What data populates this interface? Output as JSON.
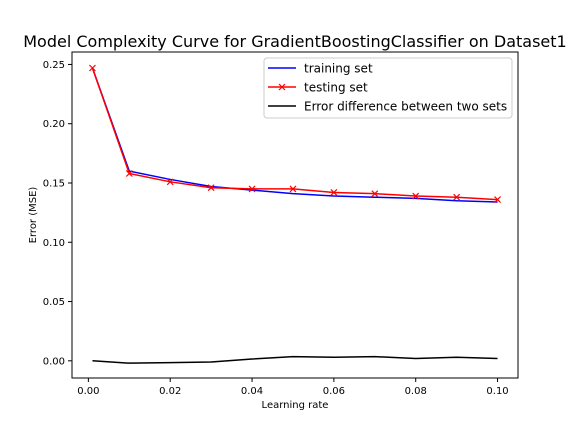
{
  "chart_data": {
    "type": "line",
    "title": "Model Complexity Curve for GradientBoostingClassifier on Dataset1",
    "xlabel": "Learning rate",
    "ylabel": "Error (MSE)",
    "xlim": [
      -0.004,
      0.105
    ],
    "ylim": [
      -0.0145,
      0.2605
    ],
    "x_ticks": [
      0.0,
      0.02,
      0.04,
      0.06,
      0.08,
      0.1
    ],
    "x_tick_labels": [
      "0.00",
      "0.02",
      "0.04",
      "0.06",
      "0.08",
      "0.10"
    ],
    "y_ticks": [
      0.0,
      0.05,
      0.1,
      0.15,
      0.2,
      0.25
    ],
    "y_tick_labels": [
      "0.00",
      "0.05",
      "0.10",
      "0.15",
      "0.20",
      "0.25"
    ],
    "x": [
      0.001,
      0.01,
      0.02,
      0.03,
      0.04,
      0.05,
      0.06,
      0.07,
      0.08,
      0.09,
      0.1
    ],
    "series": [
      {
        "name": "training set",
        "color": "#0000ff",
        "marker": "none",
        "values": [
          0.247,
          0.16,
          0.153,
          0.147,
          0.144,
          0.141,
          0.139,
          0.138,
          0.137,
          0.135,
          0.134
        ]
      },
      {
        "name": "testing set",
        "color": "#ff0000",
        "marker": "x",
        "values": [
          0.247,
          0.158,
          0.151,
          0.146,
          0.145,
          0.145,
          0.142,
          0.141,
          0.139,
          0.138,
          0.136
        ]
      },
      {
        "name": "Error difference between two sets",
        "color": "#000000",
        "marker": "none",
        "values": [
          0.0,
          -0.002,
          -0.0015,
          -0.001,
          0.0015,
          0.0035,
          0.003,
          0.0035,
          0.002,
          0.003,
          0.002
        ]
      }
    ],
    "legend_position": "top-right",
    "grid": false
  }
}
